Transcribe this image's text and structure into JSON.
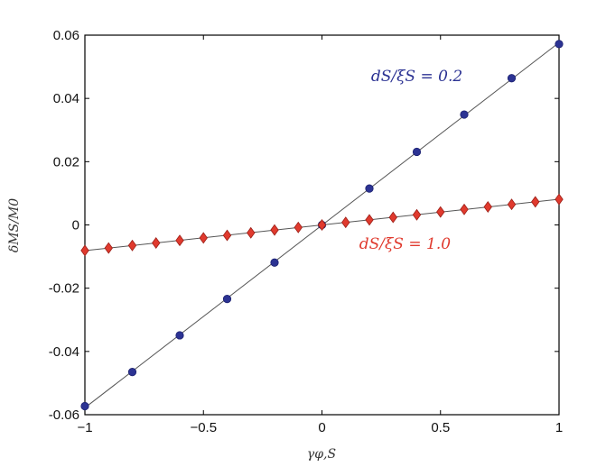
{
  "chart_data": {
    "type": "scatter",
    "xlabel": "γφ,S",
    "ylabel": "δMS/M0",
    "xlim": [
      -1,
      1
    ],
    "ylim": [
      -0.06,
      0.06
    ],
    "xticks": [
      "−1",
      "−0.5",
      "0",
      "0.5",
      "1"
    ],
    "yticks": [
      "-0.06",
      "-0.04",
      "-0.02",
      "0",
      "0.02",
      "0.04",
      "0.06"
    ],
    "grid": false,
    "series": [
      {
        "name": "dS/ξS = 0.2",
        "color": "#2c3393",
        "marker": "circle",
        "fit_line": true,
        "x": [
          -1,
          -0.8,
          -0.6,
          -0.4,
          -0.2,
          0,
          0.2,
          0.4,
          0.6,
          0.8,
          1
        ],
        "y": [
          -0.0573,
          -0.0465,
          -0.0349,
          -0.0234,
          -0.0119,
          0.0,
          0.0115,
          0.0231,
          0.0349,
          0.0464,
          0.0572
        ]
      },
      {
        "name": "dS/ξS = 1.0",
        "color": "#e03a2e",
        "marker": "diamond",
        "fit_line": true,
        "x": [
          -1,
          -0.9,
          -0.8,
          -0.7,
          -0.6,
          -0.5,
          -0.4,
          -0.3,
          -0.2,
          -0.1,
          0,
          0.1,
          0.2,
          0.3,
          0.4,
          0.5,
          0.6,
          0.7,
          0.8,
          0.9,
          1
        ],
        "y": [
          -0.0081,
          -0.0073,
          -0.0065,
          -0.0057,
          -0.0049,
          -0.0041,
          -0.0033,
          -0.0025,
          -0.0016,
          -0.0008,
          0.0,
          0.0008,
          0.0016,
          0.0024,
          0.0032,
          0.0041,
          0.0049,
          0.0057,
          0.0065,
          0.0073,
          0.0081
        ]
      }
    ],
    "annotations": [
      {
        "text": "dS/ξS = 0.2",
        "color": "#2c3393",
        "x": 0.4,
        "y": 0.0455
      },
      {
        "text": "dS/ξS = 1.0",
        "color": "#e03a2e",
        "x": 0.35,
        "y": -0.0075
      }
    ]
  }
}
